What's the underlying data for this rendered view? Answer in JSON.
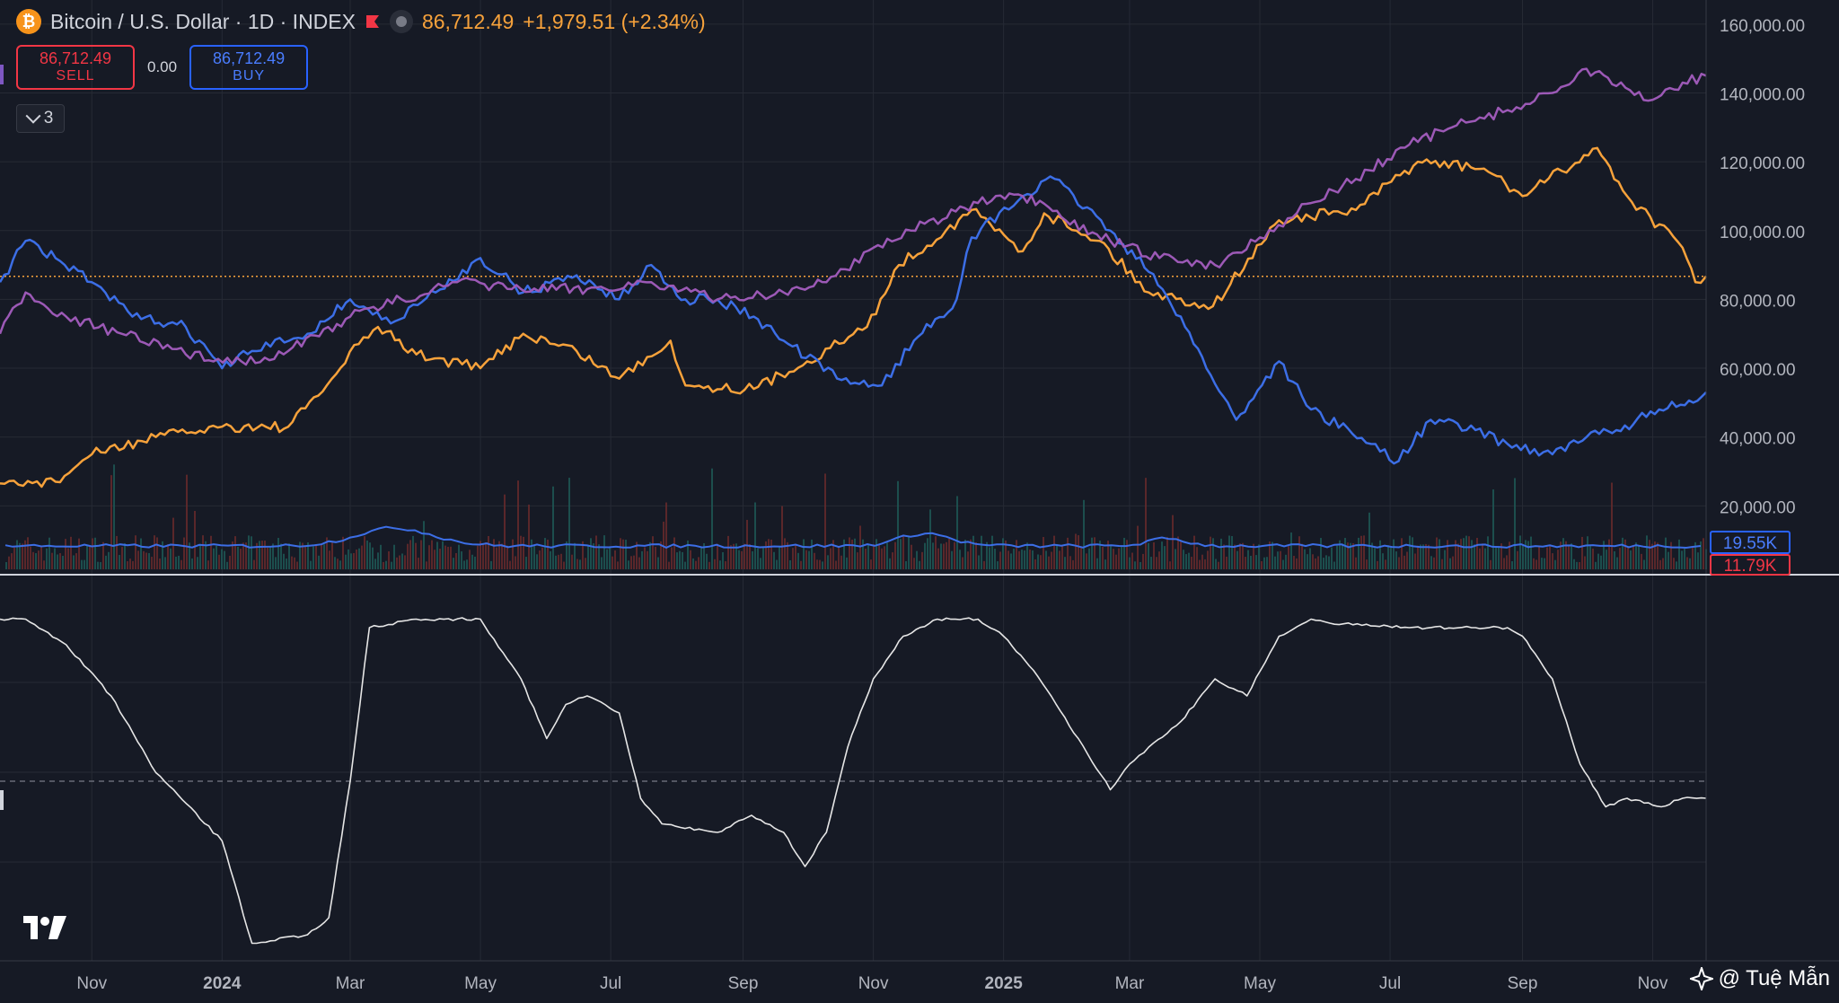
{
  "header": {
    "coin_icon": "bitcoin-icon",
    "symbol": "Bitcoin / U.S. Dollar · 1D · INDEX",
    "price": "86,712.49",
    "change": "+1,979.51 (+2.34%)"
  },
  "trade": {
    "sell_price": "86,712.49",
    "sell_label": "SELL",
    "spread": "0.00",
    "buy_price": "86,712.49",
    "buy_label": "BUY"
  },
  "indicators_toggle": {
    "count": "3"
  },
  "watermark": {
    "text": "@ Tuệ Mẫn"
  },
  "colors": {
    "background": "#161a25",
    "grid": "#262a35",
    "btc": "#f7a23b",
    "blue": "#3c6ee6",
    "purple": "#9c59b6",
    "oscillator": "#e6e6e6",
    "volume_up": "#1e5b57",
    "volume_down": "#6b2a2c"
  },
  "chart_data": {
    "type": "line",
    "title": "Bitcoin / U.S. Dollar · 1D · INDEX",
    "price_axis": {
      "ticks": [
        20000,
        40000,
        60000,
        80000,
        100000,
        120000,
        140000,
        160000
      ],
      "tick_labels": [
        "20,000.00",
        "40,000.00",
        "60,000.00",
        "80,000.00",
        "100,000.00",
        "120,000.00",
        "140,000.00",
        "160,000.00"
      ],
      "range": [
        0,
        167000
      ]
    },
    "x_axis": {
      "labels": [
        "Nov",
        "2024",
        "Mar",
        "May",
        "Jul",
        "Sep",
        "Nov",
        "2025",
        "Mar",
        "May",
        "Jul",
        "Sep",
        "Nov"
      ],
      "range": [
        "2023-09-19",
        "2025-11-26"
      ]
    },
    "current_price_line": 86712.49,
    "series": [
      {
        "color": "btc",
        "x": [
          "2023-09-19",
          "2023-10-15",
          "2023-11-01",
          "2023-12-01",
          "2024-01-01",
          "2024-02-01",
          "2024-02-15",
          "2024-03-05",
          "2024-03-14",
          "2024-04-01",
          "2024-05-01",
          "2024-05-21",
          "2024-06-15",
          "2024-07-05",
          "2024-07-29",
          "2024-08-05",
          "2024-09-06",
          "2024-10-01",
          "2024-10-29",
          "2024-11-13",
          "2024-12-05",
          "2024-12-17",
          "2025-01-10",
          "2025-01-20",
          "2025-02-15",
          "2025-03-10",
          "2025-04-09",
          "2025-05-10",
          "2025-06-15",
          "2025-07-14",
          "2025-08-14",
          "2025-09-01",
          "2025-10-06",
          "2025-10-20",
          "2025-11-15",
          "2025-11-21",
          "2025-11-26"
        ],
        "y": [
          26500,
          27000,
          35000,
          40000,
          43000,
          43000,
          52000,
          67000,
          72000,
          64000,
          60000,
          70000,
          65000,
          57000,
          68000,
          55000,
          54000,
          62000,
          72000,
          90000,
          100000,
          106000,
          94000,
          105000,
          97000,
          82000,
          78000,
          103000,
          106000,
          120000,
          118000,
          110000,
          124000,
          110000,
          95000,
          85000,
          86712
        ]
      },
      {
        "color": "blue",
        "x": [
          "2023-09-19",
          "2023-10-01",
          "2023-10-15",
          "2023-11-01",
          "2023-11-20",
          "2023-12-15",
          "2024-01-01",
          "2024-01-15",
          "2024-02-10",
          "2024-03-01",
          "2024-03-20",
          "2024-04-10",
          "2024-05-01",
          "2024-05-21",
          "2024-06-15",
          "2024-07-05",
          "2024-07-20",
          "2024-08-05",
          "2024-08-20",
          "2024-09-06",
          "2024-09-20",
          "2024-10-15",
          "2024-11-05",
          "2024-11-20",
          "2024-12-10",
          "2024-12-17",
          "2025-01-10",
          "2025-01-25",
          "2025-02-20",
          "2025-03-10",
          "2025-03-25",
          "2025-04-08",
          "2025-04-20",
          "2025-05-10",
          "2025-05-25",
          "2025-06-22",
          "2025-07-05",
          "2025-07-20",
          "2025-08-10",
          "2025-08-25",
          "2025-09-15",
          "2025-10-01",
          "2025-10-15",
          "2025-11-04",
          "2025-11-20",
          "2025-11-26"
        ],
        "y": [
          85000,
          97000,
          92000,
          85000,
          75000,
          72000,
          60000,
          65000,
          70000,
          80000,
          73000,
          82000,
          92000,
          82000,
          87000,
          80000,
          90000,
          80000,
          80000,
          75000,
          68000,
          57000,
          55000,
          68000,
          80000,
          98000,
          110000,
          115000,
          100000,
          88000,
          75000,
          58000,
          45000,
          62000,
          48000,
          38000,
          33000,
          45000,
          42000,
          38000,
          35000,
          40000,
          42000,
          48000,
          50000,
          53000
        ]
      },
      {
        "color": "purple",
        "x": [
          "2023-09-19",
          "2023-10-01",
          "2023-10-20",
          "2023-11-15",
          "2023-12-15",
          "2024-01-10",
          "2024-02-01",
          "2024-03-01",
          "2024-03-25",
          "2024-04-20",
          "2024-05-20",
          "2024-06-20",
          "2024-07-20",
          "2024-08-20",
          "2024-09-20",
          "2024-10-10",
          "2024-11-01",
          "2024-11-25",
          "2024-12-20",
          "2025-01-10",
          "2025-01-30",
          "2025-02-20",
          "2025-03-15",
          "2025-04-10",
          "2025-05-01",
          "2025-05-25",
          "2025-06-15",
          "2025-07-10",
          "2025-07-30",
          "2025-08-25",
          "2025-09-15",
          "2025-10-01",
          "2025-10-15",
          "2025-11-01",
          "2025-11-15",
          "2025-11-26"
        ],
        "y": [
          70000,
          82000,
          75000,
          70000,
          64000,
          62000,
          65000,
          75000,
          80000,
          85000,
          83000,
          83000,
          85000,
          80000,
          82000,
          85000,
          95000,
          102000,
          108000,
          110000,
          103000,
          97000,
          92000,
          90000,
          98000,
          108000,
          115000,
          125000,
          130000,
          135000,
          140000,
          147000,
          142000,
          138000,
          143000,
          145000
        ]
      }
    ],
    "volume": {
      "value_labels": [
        "19.55K",
        "11.79K"
      ],
      "ma_color": "blue"
    },
    "oscillator": {
      "x": [
        "2023-09-19",
        "2023-10-01",
        "2023-10-20",
        "2023-11-10",
        "2023-12-01",
        "2024-01-01",
        "2024-01-15",
        "2024-02-10",
        "2024-02-20",
        "2024-03-01",
        "2024-03-10",
        "2024-04-01",
        "2024-05-01",
        "2024-05-20",
        "2024-06-01",
        "2024-06-10",
        "2024-06-20",
        "2024-07-05",
        "2024-07-15",
        "2024-07-25",
        "2024-08-20",
        "2024-09-05",
        "2024-09-20",
        "2024-09-30",
        "2024-10-10",
        "2024-10-20",
        "2024-11-01",
        "2024-11-15",
        "2024-12-01",
        "2024-12-20",
        "2025-01-01",
        "2025-01-15",
        "2025-02-05",
        "2025-02-20",
        "2025-03-01",
        "2025-03-10",
        "2025-03-25",
        "2025-04-10",
        "2025-04-25",
        "2025-05-10",
        "2025-05-25",
        "2025-06-05",
        "2025-06-20",
        "2025-07-10",
        "2025-08-10",
        "2025-08-25",
        "2025-09-01",
        "2025-09-15",
        "2025-09-28",
        "2025-10-10",
        "2025-10-20",
        "2025-11-05",
        "2025-11-15",
        "2025-11-26"
      ],
      "y": [
        0.95,
        0.95,
        0.8,
        0.5,
        0.05,
        -0.35,
        -0.95,
        -0.9,
        -0.8,
        0.0,
        0.9,
        0.95,
        0.95,
        0.6,
        0.25,
        0.45,
        0.5,
        0.4,
        -0.1,
        -0.25,
        -0.3,
        -0.2,
        -0.3,
        -0.5,
        -0.3,
        0.2,
        0.6,
        0.85,
        0.95,
        0.95,
        0.85,
        0.65,
        0.25,
        -0.05,
        0.1,
        0.2,
        0.35,
        0.6,
        0.5,
        0.85,
        0.95,
        0.92,
        0.92,
        0.9,
        0.9,
        0.9,
        0.85,
        0.6,
        0.1,
        -0.15,
        -0.1,
        -0.15,
        -0.1,
        -0.1
      ]
    }
  }
}
